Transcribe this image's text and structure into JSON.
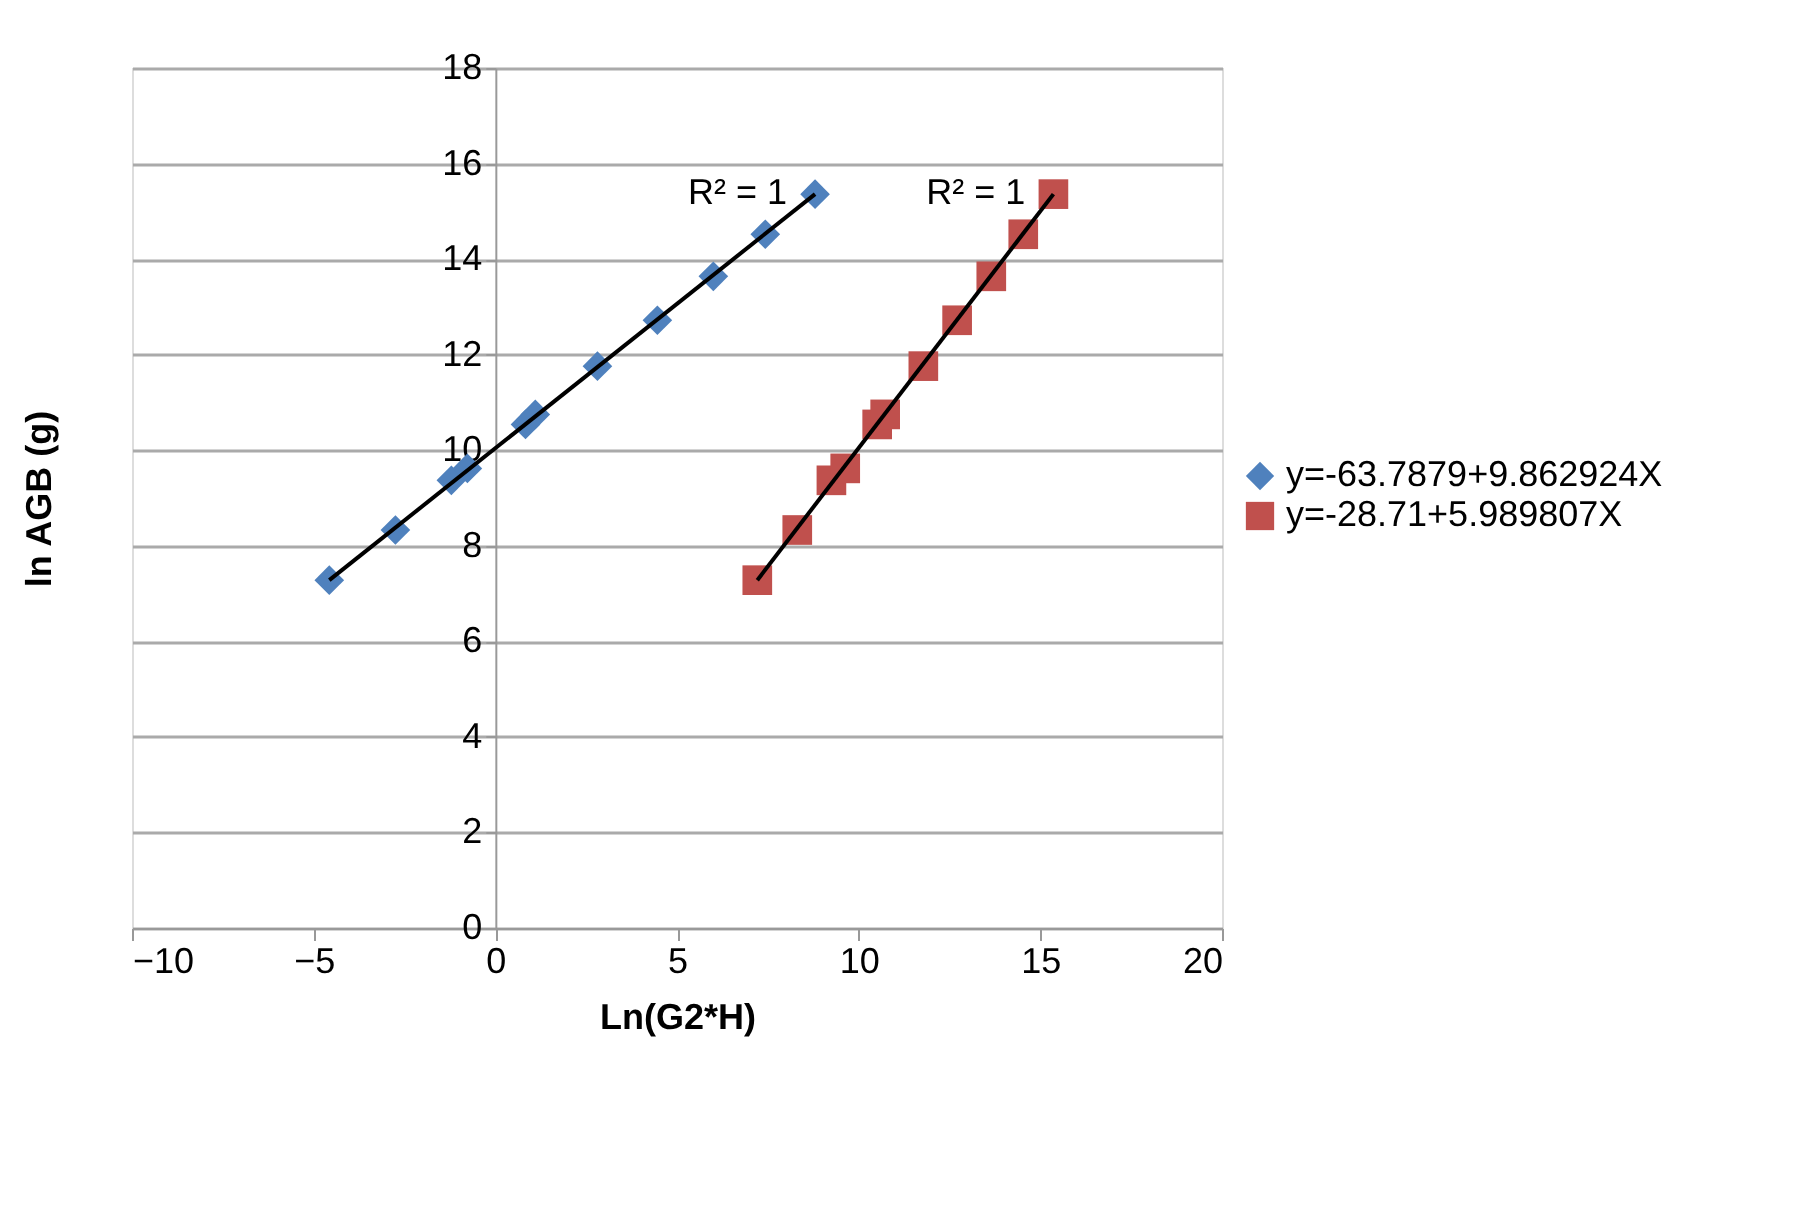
{
  "chart_data": {
    "type": "scatter",
    "xlabel": "Ln(G2*H)",
    "ylabel": "ln AGB (g)",
    "xlim": [
      -10,
      20
    ],
    "xticks": [
      -10,
      -5,
      0,
      5,
      10,
      15,
      20
    ],
    "ylim": [
      0,
      18
    ],
    "yticks": [
      0,
      2,
      4,
      6,
      8,
      10,
      12,
      14,
      16,
      18
    ],
    "grid": "y",
    "legend": "right",
    "series": [
      {
        "name": "y=-63.7879+9.862924X",
        "color": "#4f81bd",
        "marker": "diamond",
        "x": [
          -4.57,
          -2.75,
          -1.21,
          -0.77,
          0.83,
          1.1,
          2.81,
          4.46,
          6.0,
          7.43,
          8.8
        ],
        "values": [
          7.28,
          8.33,
          9.37,
          9.62,
          10.54,
          10.75,
          11.76,
          12.72,
          13.64,
          14.52,
          15.36
        ]
      },
      {
        "name": "y=-28.71+5.989807X",
        "color": "#c0504d",
        "marker": "square",
        "x": [
          7.21,
          8.31,
          9.25,
          9.63,
          10.51,
          10.73,
          11.78,
          12.71,
          13.65,
          14.53,
          15.36
        ],
        "values": [
          7.28,
          8.33,
          9.37,
          9.62,
          10.54,
          10.75,
          11.76,
          12.72,
          13.64,
          14.52,
          15.36
        ]
      },
      {
        "type": "line",
        "color": "#000000",
        "x": [
          -4.57,
          8.8
        ],
        "values": [
          7.28,
          15.36
        ]
      },
      {
        "type": "line",
        "color": "#000000",
        "x": [
          7.21,
          15.36
        ],
        "values": [
          7.28,
          15.36
        ]
      }
    ],
    "annotations": [
      "R² = 1",
      "R² = 1"
    ]
  }
}
